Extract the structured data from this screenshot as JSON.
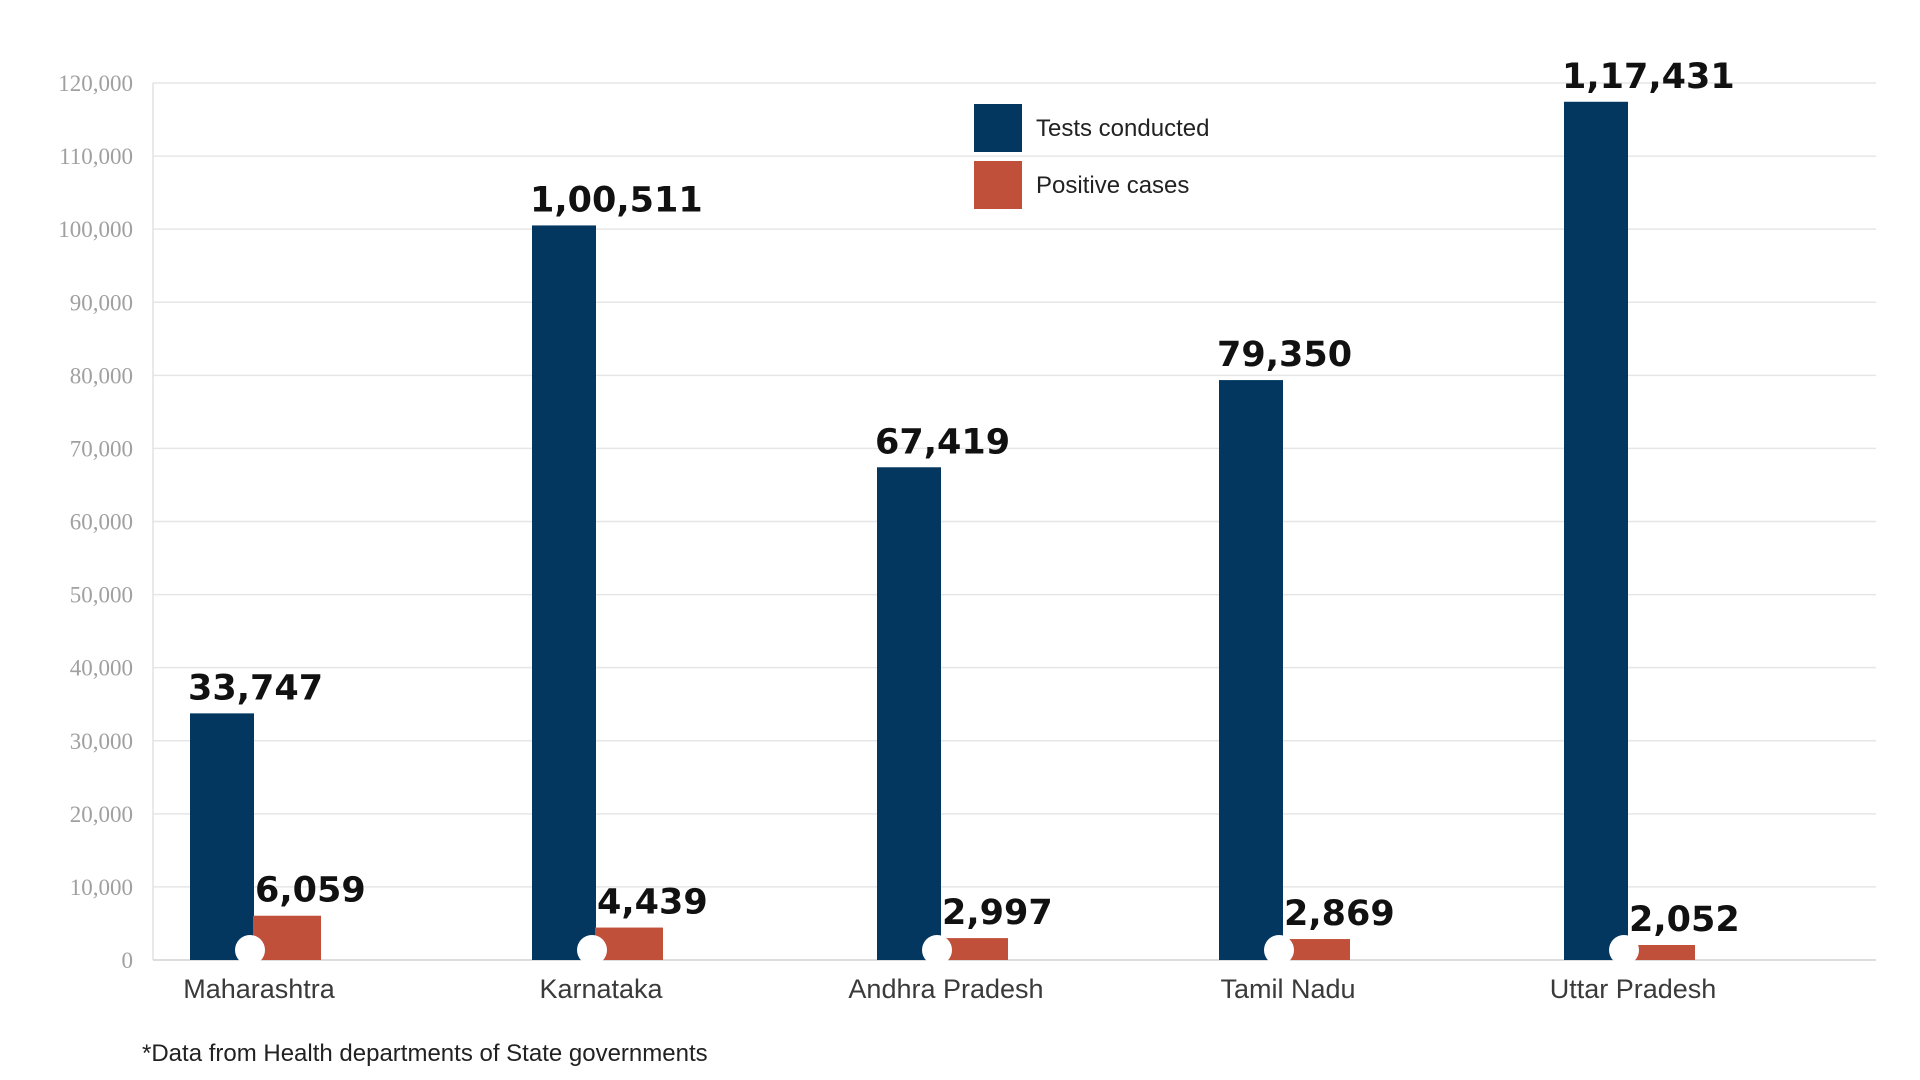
{
  "chart_data": {
    "type": "bar",
    "title": "",
    "xlabel": "",
    "ylabel": "",
    "categories": [
      "Maharashtra",
      "Karnataka",
      "Andhra Pradesh",
      "Tamil Nadu",
      "Uttar Pradesh"
    ],
    "series": [
      {
        "name": "Tests conducted",
        "color": "#03375f",
        "values": [
          33747,
          100511,
          67419,
          79350,
          117431
        ],
        "labels": [
          "33,747",
          "1,00,511",
          "67,419",
          "79,350",
          "1,17,431"
        ]
      },
      {
        "name": "Positive cases",
        "color": "#c0503a",
        "values": [
          6059,
          4439,
          2997,
          2869,
          2052
        ],
        "labels": [
          "6,059",
          "4,439",
          "2,997",
          "2,869",
          "2,052"
        ]
      }
    ],
    "ylim": [
      0,
      120000
    ],
    "yticks": [
      0,
      10000,
      20000,
      30000,
      40000,
      50000,
      60000,
      70000,
      80000,
      90000,
      100000,
      110000,
      120000
    ],
    "ytick_labels": [
      "0",
      "10,000",
      "20,000",
      "30,000",
      "40,000",
      "50,000",
      "60,000",
      "70,000",
      "80,000",
      "90,000",
      "100,000",
      "110,000",
      "120,000"
    ],
    "grid": true,
    "legend": "top-center",
    "footnote": "*Data from Health departments of State governments"
  }
}
